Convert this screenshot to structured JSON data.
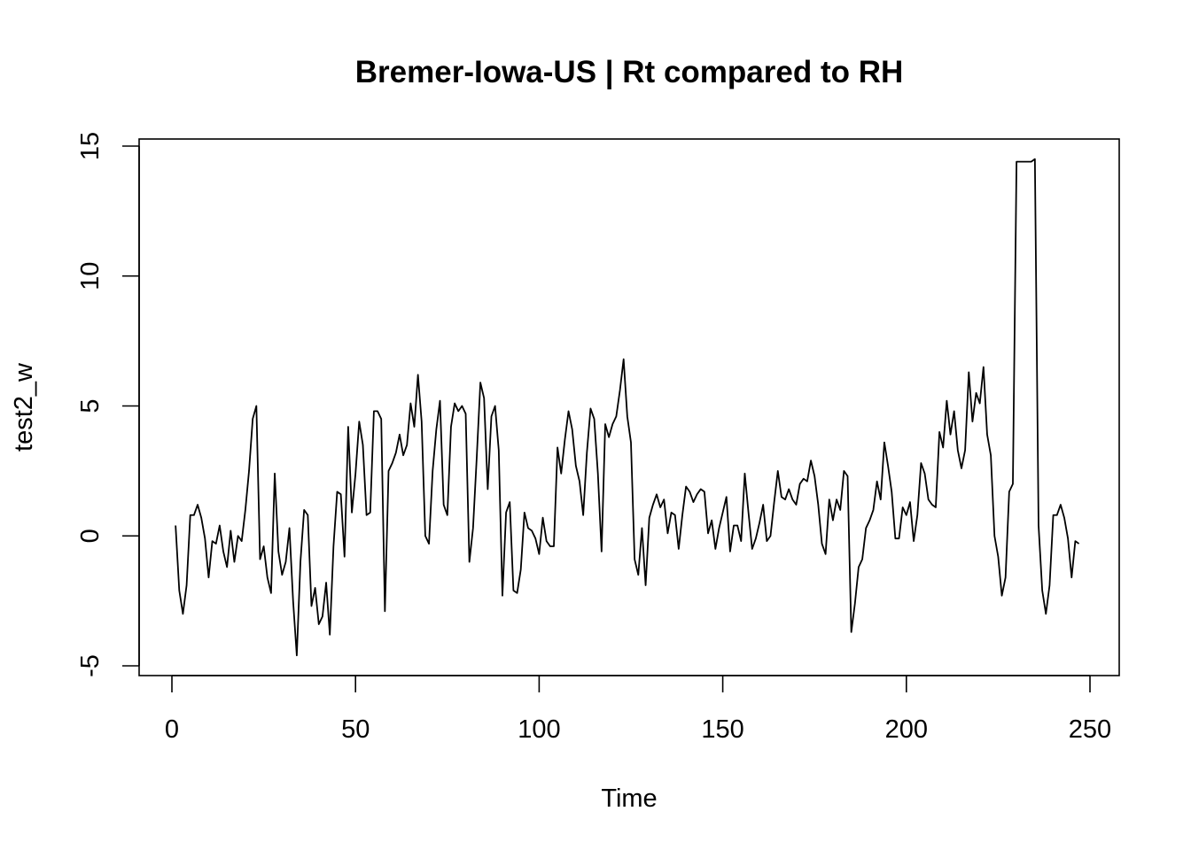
{
  "chart_data": {
    "type": "line",
    "title": "Bremer-Iowa-US | Rt compared to RH",
    "xlabel": "Time",
    "ylabel": "test2_w",
    "xlim": [
      1,
      248
    ],
    "ylim": [
      -5,
      15
    ],
    "x_ticks": [
      0,
      50,
      100,
      150,
      200,
      250
    ],
    "y_ticks": [
      -5,
      0,
      5,
      10,
      15
    ],
    "x_tick_labels": [
      "0",
      "50",
      "100",
      "150",
      "200",
      "250"
    ],
    "y_tick_labels": [
      "-5",
      "0",
      "5",
      "10",
      "15"
    ],
    "grid": false,
    "legend": "none",
    "series": [
      {
        "color": "#000000",
        "x_start": 1,
        "x_step": 1,
        "values": [
          0.4,
          -2.1,
          -3.0,
          -1.9,
          0.8,
          0.8,
          1.2,
          0.7,
          -0.1,
          -1.6,
          -0.2,
          -0.3,
          0.4,
          -0.6,
          -1.2,
          0.2,
          -1.0,
          0.0,
          -0.2,
          1.0,
          2.5,
          4.5,
          5.0,
          -0.9,
          -0.4,
          -1.6,
          -2.2,
          2.4,
          -0.6,
          -1.5,
          -1.0,
          0.3,
          -2.5,
          -4.6,
          -1.0,
          1.0,
          0.8,
          -2.7,
          -2.0,
          -3.4,
          -3.1,
          -1.8,
          -3.8,
          -0.4,
          1.7,
          1.6,
          -0.8,
          4.2,
          0.9,
          2.4,
          4.4,
          3.5,
          0.8,
          0.9,
          4.8,
          4.8,
          4.5,
          -2.9,
          2.5,
          2.8,
          3.2,
          3.9,
          3.1,
          3.5,
          5.1,
          4.2,
          6.2,
          4.4,
          0.0,
          -0.3,
          2.5,
          4.1,
          5.2,
          1.2,
          0.8,
          4.2,
          5.1,
          4.8,
          5.0,
          4.7,
          -1.0,
          0.3,
          3.0,
          5.9,
          5.3,
          1.8,
          4.6,
          5.0,
          3.3,
          -2.3,
          0.9,
          1.3,
          -2.1,
          -2.2,
          -1.3,
          0.9,
          0.3,
          0.2,
          -0.1,
          -0.7,
          0.7,
          -0.2,
          -0.4,
          -0.4,
          3.4,
          2.4,
          3.7,
          4.8,
          4.1,
          2.7,
          2.1,
          0.8,
          3.2,
          4.9,
          4.5,
          2.4,
          -0.6,
          4.3,
          3.8,
          4.3,
          4.6,
          5.6,
          6.8,
          4.6,
          3.6,
          -0.9,
          -1.5,
          0.3,
          -1.9,
          0.7,
          1.2,
          1.6,
          1.1,
          1.4,
          0.1,
          0.9,
          0.8,
          -0.5,
          0.8,
          1.9,
          1.7,
          1.3,
          1.6,
          1.8,
          1.7,
          0.1,
          0.6,
          -0.5,
          0.3,
          0.9,
          1.5,
          -0.6,
          0.4,
          0.4,
          -0.2,
          2.4,
          0.9,
          -0.5,
          -0.1,
          0.5,
          1.2,
          -0.2,
          0.0,
          1.3,
          2.5,
          1.5,
          1.4,
          1.8,
          1.4,
          1.2,
          2.0,
          2.2,
          2.1,
          2.9,
          2.3,
          1.2,
          -0.3,
          -0.7,
          1.4,
          0.6,
          1.4,
          1.0,
          2.5,
          2.3,
          -3.7,
          -2.6,
          -1.2,
          -0.9,
          0.3,
          0.6,
          1.0,
          2.1,
          1.4,
          3.6,
          2.7,
          1.7,
          -0.1,
          -0.1,
          1.1,
          0.8,
          1.3,
          -0.2,
          0.8,
          2.8,
          2.4,
          1.4,
          1.2,
          1.1,
          4.0,
          3.4,
          5.2,
          3.9,
          4.8,
          3.3,
          2.6,
          3.3,
          6.3,
          4.4,
          5.5,
          5.1,
          6.5,
          3.9,
          3.1,
          0.0,
          -0.8,
          -2.3,
          -1.6,
          1.7,
          2.0,
          14.4,
          14.4,
          14.4,
          14.4,
          14.4,
          14.5,
          0.4,
          -2.1,
          -3.0,
          -1.9,
          0.8,
          0.8,
          1.2,
          0.7,
          -0.1,
          -1.6,
          -0.2,
          -0.3
        ]
      }
    ]
  }
}
